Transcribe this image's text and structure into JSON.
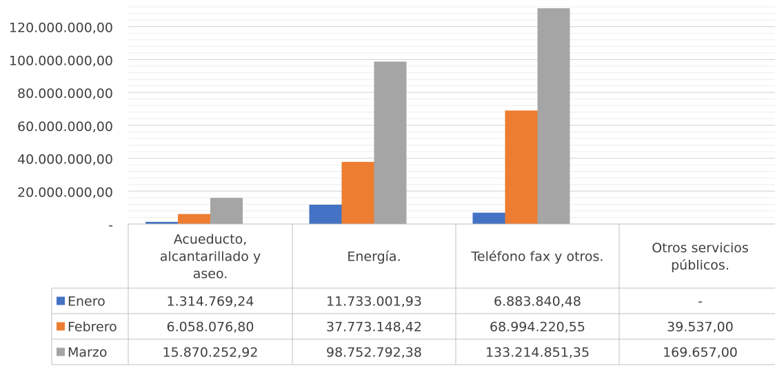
{
  "chart_data": {
    "type": "bar",
    "categories": [
      [
        "Acueducto,",
        "alcantarillado y",
        "aseo."
      ],
      [
        "Energía."
      ],
      [
        "Teléfono fax y otros."
      ],
      [
        "Otros servicios",
        "públicos."
      ]
    ],
    "series": [
      {
        "name": "Enero",
        "color": "#4472C4",
        "values": [
          1314769.24,
          11733001.93,
          6883840.48,
          0
        ],
        "labels": [
          "1.314.769,24",
          "11.733.001,93",
          "6.883.840,48",
          "-"
        ]
      },
      {
        "name": "Febrero",
        "color": "#ED7D31",
        "values": [
          6058076.8,
          37773148.42,
          68994220.55,
          39537.0
        ],
        "labels": [
          "6.058.076,80",
          "37.773.148,42",
          "68.994.220,55",
          "39.537,00"
        ]
      },
      {
        "name": "Marzo",
        "color": "#A5A5A5",
        "values": [
          15870252.92,
          98752792.38,
          133214851.35,
          169657.0
        ],
        "labels": [
          "15.870.252,92",
          "98.752.792,38",
          "133.214.851,35",
          "169.657,00"
        ]
      }
    ],
    "y_ticks": [
      {
        "value": 0,
        "label": "-"
      },
      {
        "value": 20000000,
        "label": "20.000.000,00"
      },
      {
        "value": 40000000,
        "label": "40.000.000,00"
      },
      {
        "value": 60000000,
        "label": "60.000.000,00"
      },
      {
        "value": 80000000,
        "label": "80.000.000,00"
      },
      {
        "value": 100000000,
        "label": "100.000.000,00"
      },
      {
        "value": 120000000,
        "label": "120.000.000,00"
      }
    ],
    "ylim": [
      0,
      132000000
    ],
    "minor_grid_step": 4000000,
    "grid": true,
    "legend": "data-table"
  }
}
